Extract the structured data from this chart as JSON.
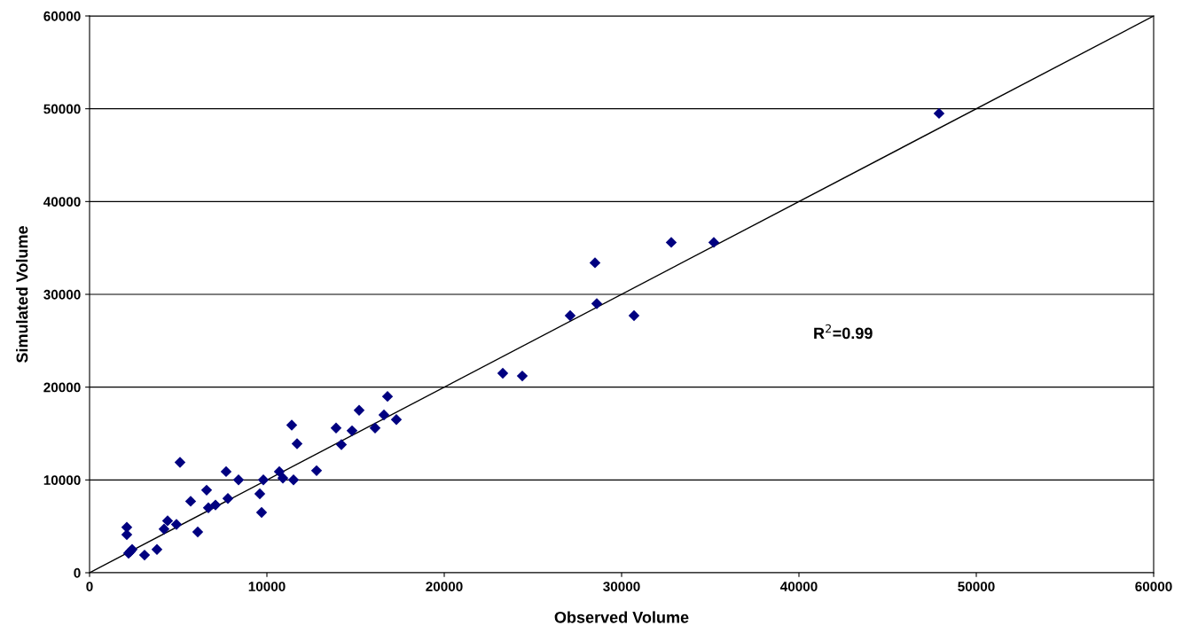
{
  "chart_data": {
    "type": "scatter",
    "xlabel": "Observed Volume",
    "ylabel": "Simulated Volume",
    "annotations": [
      "R$^{2}$=0.99"
    ],
    "series": [
      {
        "color": "#000080",
        "marker": "diamond",
        "x": [
          2100,
          2100,
          2200,
          2300,
          2400,
          3100,
          3800,
          4200,
          4400,
          4900,
          5100,
          5700,
          6100,
          6600,
          6700,
          7100,
          7700,
          7800,
          8400,
          9600,
          9700,
          9800,
          10700,
          10900,
          11400,
          11500,
          11700,
          12800,
          13900,
          14200,
          14800,
          15200,
          16100,
          16600,
          16800,
          17300,
          23300,
          24400,
          27100,
          28500,
          28600,
          30700,
          32800,
          35200,
          47900
        ],
        "values": [
          4900,
          4100,
          2100,
          2300,
          2500,
          1900,
          2500,
          4700,
          5600,
          5200,
          11900,
          7700,
          4400,
          8900,
          7000,
          7300,
          10900,
          8000,
          10000,
          8500,
          6500,
          10000,
          10900,
          10200,
          15900,
          10000,
          13900,
          11000,
          15600,
          13800,
          15300,
          17500,
          15600,
          17000,
          19000,
          16500,
          21500,
          21200,
          27700,
          33400,
          29000,
          27700,
          35600,
          35600,
          49500
        ]
      },
      {
        "type": "line",
        "color": "#000000",
        "marker": "none",
        "line_style": "solid",
        "x": [
          0,
          60000
        ],
        "values": [
          0,
          60000
        ]
      }
    ],
    "xlim": [
      0,
      60000
    ],
    "ylim": [
      0,
      60000
    ],
    "xticks": [
      0,
      10000,
      20000,
      30000,
      40000,
      50000,
      60000
    ],
    "yticks": [
      0,
      10000,
      20000,
      30000,
      40000,
      50000,
      60000
    ],
    "grid": "y",
    "legend": false
  }
}
